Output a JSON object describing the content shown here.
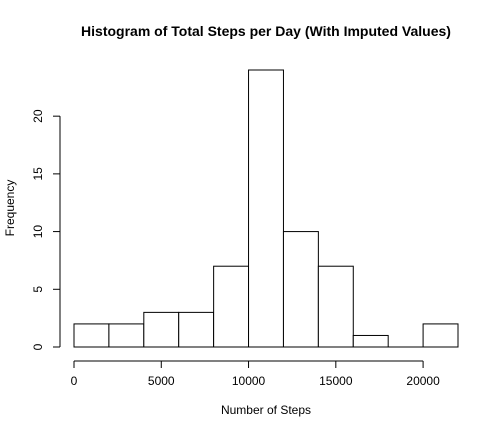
{
  "chart_data": {
    "type": "bar",
    "title": "Histogram of Total Steps per Day (With Imputed Values)",
    "xlabel": "Number of Steps",
    "ylabel": "Frequency",
    "bins": [
      {
        "start": 0,
        "end": 2000,
        "count": 2
      },
      {
        "start": 2000,
        "end": 4000,
        "count": 2
      },
      {
        "start": 4000,
        "end": 6000,
        "count": 3
      },
      {
        "start": 6000,
        "end": 8000,
        "count": 3
      },
      {
        "start": 8000,
        "end": 10000,
        "count": 7
      },
      {
        "start": 10000,
        "end": 12000,
        "count": 24
      },
      {
        "start": 12000,
        "end": 14000,
        "count": 10
      },
      {
        "start": 14000,
        "end": 16000,
        "count": 7
      },
      {
        "start": 16000,
        "end": 18000,
        "count": 1
      },
      {
        "start": 18000,
        "end": 20000,
        "count": 0
      },
      {
        "start": 20000,
        "end": 22000,
        "count": 2
      }
    ],
    "xlim": [
      0,
      22000
    ],
    "ylim": [
      0,
      24
    ],
    "x_ticks": [
      0,
      5000,
      10000,
      15000,
      20000
    ],
    "y_ticks": [
      0,
      5,
      10,
      15,
      20
    ],
    "colors": {
      "bar_fill": "#ffffff",
      "bar_stroke": "#000000",
      "text": "#000000"
    },
    "grid": false,
    "legend": "none"
  }
}
